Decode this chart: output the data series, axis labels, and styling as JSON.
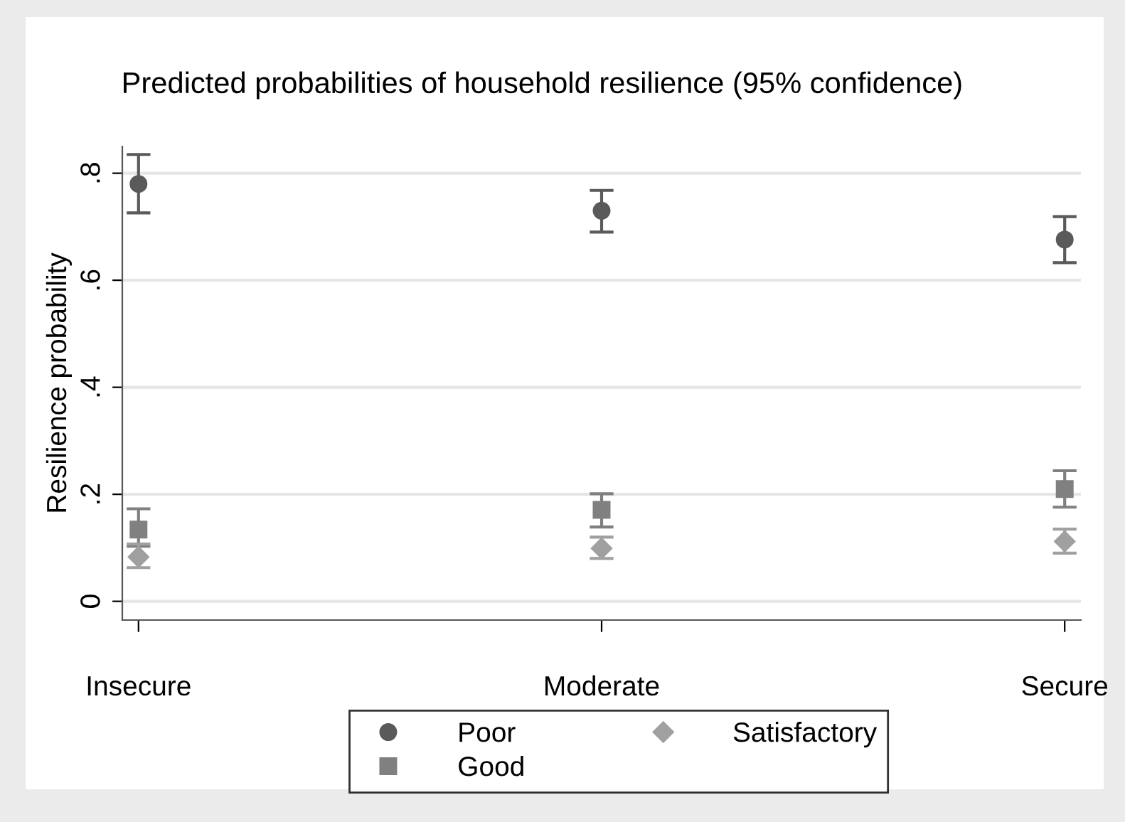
{
  "chart_data": {
    "type": "scatter",
    "title": "Predicted probabilities of household resilience (95% confidence)",
    "ylabel": "Resilience probability",
    "categories": [
      "Insecure",
      "Moderate",
      "Secure"
    ],
    "series": [
      {
        "name": "Poor",
        "color": "#5a5a5a",
        "marker": "circle",
        "values": [
          0.78,
          0.73,
          0.676
        ],
        "errors": [
          [
            0.726,
            0.835
          ],
          [
            0.69,
            0.768
          ],
          [
            0.633,
            0.719
          ]
        ]
      },
      {
        "name": "Good",
        "color": "#808080",
        "marker": "square",
        "values": [
          0.134,
          0.171,
          0.21
        ],
        "errors": [
          [
            0.103,
            0.173
          ],
          [
            0.139,
            0.201
          ],
          [
            0.176,
            0.244
          ]
        ]
      },
      {
        "name": "Satisfactory",
        "color": "#a0a0a0",
        "marker": "diamond",
        "values": [
          0.083,
          0.099,
          0.112
        ],
        "errors": [
          [
            0.063,
            0.107
          ],
          [
            0.08,
            0.12
          ],
          [
            0.09,
            0.135
          ]
        ]
      }
    ],
    "ylim": [
      -0.035,
      0.85
    ],
    "yticks": [
      0,
      {
        "value": 0.2,
        "label": ".2"
      },
      {
        "value": 0.4,
        "label": ".4"
      },
      {
        "value": 0.6,
        "label": ".6"
      },
      {
        "value": 0.8,
        "label": ".8"
      }
    ],
    "grid": "y",
    "legend": "bottom"
  }
}
